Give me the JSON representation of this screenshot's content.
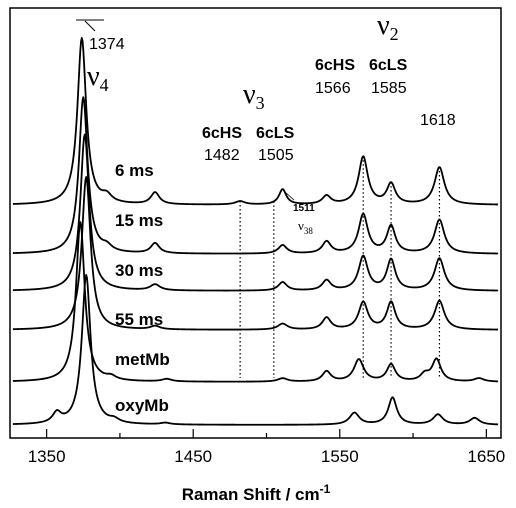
{
  "chart_data": {
    "type": "line",
    "xlabel": "Raman Shift / cm",
    "xlabel_sup": "-1",
    "xlim": [
      1325,
      1660
    ],
    "x_ticks": [
      1350,
      1450,
      1550,
      1650
    ],
    "y_ticks_shown": false,
    "grid": false,
    "series": [
      {
        "name": "6 ms",
        "peaks": [
          [
            1374,
            9.8,
            3.6
          ],
          [
            1391,
            0.4,
            4
          ],
          [
            1424,
            0.7,
            3.5
          ],
          [
            1482,
            0.2,
            4
          ],
          [
            1511,
            0.9,
            3.0
          ],
          [
            1541,
            0.5,
            3.5
          ],
          [
            1566,
            2.8,
            3.8
          ],
          [
            1585,
            1.2,
            3.5
          ],
          [
            1618,
            2.2,
            4
          ]
        ]
      },
      {
        "name": "15 ms",
        "peaks": [
          [
            1375,
            9.2,
            3.6
          ],
          [
            1391,
            0.3,
            4
          ],
          [
            1424,
            0.6,
            3.5
          ],
          [
            1511,
            0.5,
            3.5
          ],
          [
            1541,
            0.7,
            3.5
          ],
          [
            1566,
            2.3,
            3.8
          ],
          [
            1585,
            1.6,
            3.5
          ],
          [
            1618,
            2.0,
            4
          ]
        ]
      },
      {
        "name": "30 ms",
        "peaks": [
          [
            1376,
            9.2,
            3.6
          ],
          [
            1424,
            0.35,
            4
          ],
          [
            1511,
            0.5,
            3.5
          ],
          [
            1541,
            0.6,
            3.5
          ],
          [
            1566,
            2.0,
            3.8
          ],
          [
            1585,
            1.8,
            3.5
          ],
          [
            1618,
            1.9,
            4
          ]
        ]
      },
      {
        "name": "55 ms",
        "peaks": [
          [
            1377,
            9.0,
            3.6
          ],
          [
            1424,
            0.2,
            4
          ],
          [
            1511,
            0.35,
            4
          ],
          [
            1541,
            0.7,
            3.5
          ],
          [
            1566,
            1.6,
            3.8
          ],
          [
            1585,
            1.6,
            3.5
          ],
          [
            1618,
            1.7,
            4
          ]
        ]
      },
      {
        "name": "metMb",
        "peaks": [
          [
            1373,
            9.4,
            3.6
          ],
          [
            1394,
            0.2,
            4
          ],
          [
            1432,
            0.15,
            4
          ],
          [
            1511,
            0.2,
            4
          ],
          [
            1541,
            0.6,
            3.5
          ],
          [
            1563,
            1.3,
            4
          ],
          [
            1585,
            1.0,
            3.5
          ],
          [
            1608,
            0.4,
            3.5
          ],
          [
            1616,
            1.3,
            3.6
          ],
          [
            1645,
            0.2,
            4
          ]
        ]
      },
      {
        "name": "oxyMb",
        "peaks": [
          [
            1357,
            0.6,
            3.5
          ],
          [
            1377,
            8.8,
            3.6
          ],
          [
            1396,
            0.2,
            4
          ],
          [
            1431,
            0.1,
            4
          ],
          [
            1560,
            0.7,
            4
          ],
          [
            1586,
            1.6,
            3.5
          ],
          [
            1617,
            0.6,
            4
          ],
          [
            1642,
            0.4,
            4
          ]
        ]
      }
    ],
    "vertical_markers": [
      1482,
      1505,
      1566,
      1585,
      1618
    ],
    "annotations": {
      "v4": {
        "symbol": "ν",
        "sub": "4",
        "position": "1374"
      },
      "v3": {
        "symbol": "ν",
        "sub": "3",
        "states": [
          "6cHS",
          "6cLS"
        ],
        "positions": [
          "1482",
          "1505"
        ]
      },
      "v2": {
        "symbol": "ν",
        "sub": "2",
        "states": [
          "6cHS",
          "6cLS"
        ],
        "positions": [
          "1566",
          "1585"
        ]
      },
      "peak_1618": "1618",
      "v38": {
        "position": "1511",
        "symbol": "ν",
        "sub": "38"
      }
    }
  }
}
